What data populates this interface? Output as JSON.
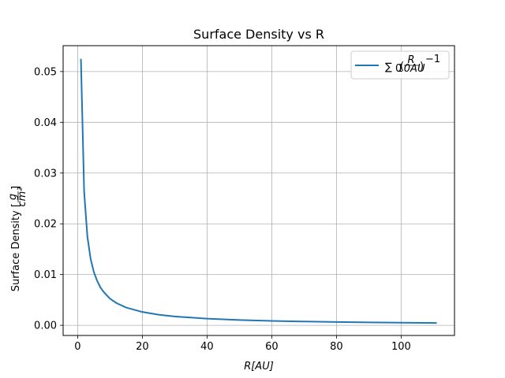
{
  "chart_data": {
    "type": "line",
    "title": "Surface Density vs R",
    "xlabel": "R[AU]",
    "ylabel": "Surface Density [g/cm²]",
    "xlim": [
      -4.5,
      116.5
    ],
    "ylim": [
      -0.002,
      0.0551
    ],
    "x_ticks": [
      0,
      20,
      40,
      60,
      80,
      100
    ],
    "x_tick_labels": [
      "0",
      "20",
      "40",
      "60",
      "80",
      "100"
    ],
    "y_ticks": [
      0.0,
      0.01,
      0.02,
      0.03,
      0.04,
      0.05
    ],
    "y_tick_labels": [
      "0.00",
      "0.01",
      "0.02",
      "0.03",
      "0.04",
      "0.05"
    ],
    "grid": true,
    "legend_position": "top-right",
    "series": [
      {
        "name": "Σ₀(R/10AU)⁻¹",
        "color": "#1f77b4",
        "x": [
          1,
          2,
          3,
          4,
          5,
          6,
          7,
          8,
          10,
          12,
          15,
          20,
          25,
          30,
          40,
          50,
          60,
          70,
          80,
          90,
          100,
          111
        ],
        "y": [
          0.0525,
          0.0263,
          0.0175,
          0.0131,
          0.0105,
          0.0088,
          0.0075,
          0.0066,
          0.00525,
          0.00438,
          0.0035,
          0.00263,
          0.0021,
          0.00175,
          0.00131,
          0.00105,
          0.00088,
          0.00075,
          0.00066,
          0.00058,
          0.000525,
          0.00047
        ]
      }
    ]
  }
}
